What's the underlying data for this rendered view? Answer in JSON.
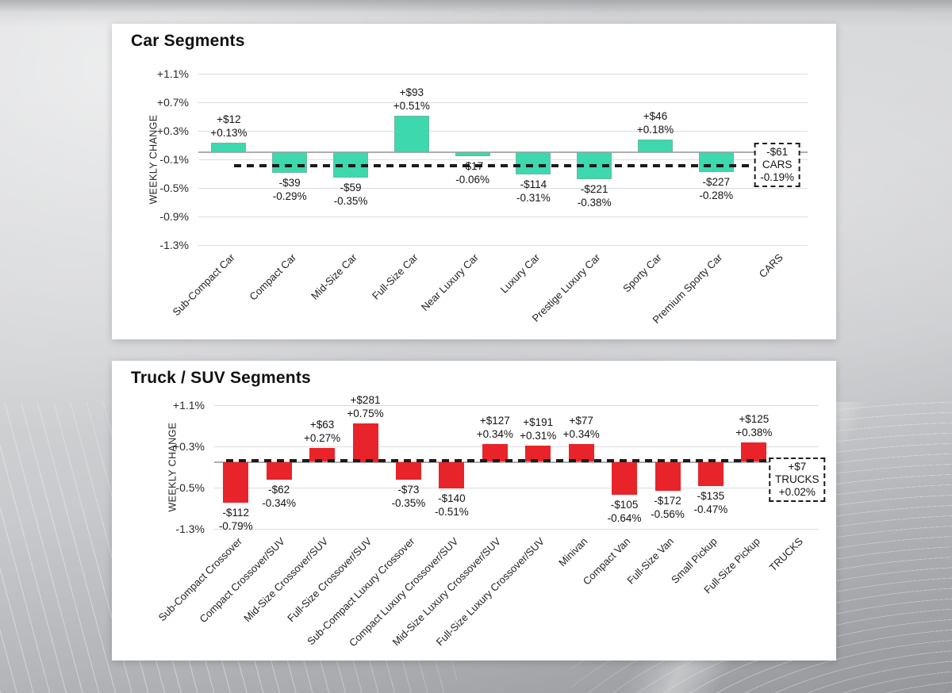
{
  "chart_data": [
    {
      "type": "bar",
      "title": "Car Segments",
      "ylabel": "WEEKLY CHANGE",
      "ylim": [
        -1.3,
        1.1
      ],
      "grid": true,
      "bar_color": "#3dd8ae",
      "bar_border": "#6fb7a2",
      "yticks": [
        {
          "value": 1.1,
          "label": "+1.1%"
        },
        {
          "value": 0.7,
          "label": "+0.7%"
        },
        {
          "value": 0.3,
          "label": "+0.3%"
        },
        {
          "value": -0.1,
          "label": "-0.1%"
        },
        {
          "value": -0.5,
          "label": "-0.5%"
        },
        {
          "value": -0.9,
          "label": "-0.9%"
        },
        {
          "value": -1.3,
          "label": "-1.3%"
        }
      ],
      "bars": [
        {
          "category": "Sub-Compact Car",
          "dollar": "+$12",
          "percent": "+0.13%",
          "percent_value": 0.13
        },
        {
          "category": "Compact Car",
          "dollar": "-$39",
          "percent": "-0.29%",
          "percent_value": -0.29
        },
        {
          "category": "Mid-Size Car",
          "dollar": "-$59",
          "percent": "-0.35%",
          "percent_value": -0.35
        },
        {
          "category": "Full-Size Car",
          "dollar": "+$93",
          "percent": "+0.51%",
          "percent_value": 0.51
        },
        {
          "category": "Near Luxury Car",
          "dollar": "-$17",
          "percent": "-0.06%",
          "percent_value": -0.06
        },
        {
          "category": "Luxury Car",
          "dollar": "-$114",
          "percent": "-0.31%",
          "percent_value": -0.31
        },
        {
          "category": "Prestige Luxury Car",
          "dollar": "-$221",
          "percent": "-0.38%",
          "percent_value": -0.38
        },
        {
          "category": "Sporty Car",
          "dollar": "+$46",
          "percent": "+0.18%",
          "percent_value": 0.18
        },
        {
          "category": "Premium Sporty Car",
          "dollar": "-$227",
          "percent": "-0.28%",
          "percent_value": -0.28
        }
      ],
      "summary": {
        "category": "CARS",
        "dollar": "-$61",
        "percent": "-0.19%",
        "percent_value": -0.19
      },
      "average_line": {
        "value": -0.19,
        "style": "dashed"
      },
      "summary_box_position": "center"
    },
    {
      "type": "bar",
      "title": "Truck / SUV Segments",
      "ylabel": "WEEKLY CHANGE",
      "ylim": [
        -1.3,
        1.1
      ],
      "grid": true,
      "bar_color": "#e8242a",
      "yticks": [
        {
          "value": 1.1,
          "label": "+1.1%"
        },
        {
          "value": 0.3,
          "label": "+0.3%"
        },
        {
          "value": -0.5,
          "label": "-0.5%"
        },
        {
          "value": -1.3,
          "label": "-1.3%"
        }
      ],
      "bars": [
        {
          "category": "Sub-Compact Crossover",
          "dollar": "-$112",
          "percent": "-0.79%",
          "percent_value": -0.79
        },
        {
          "category": "Compact Crossover/SUV",
          "dollar": "-$62",
          "percent": "-0.34%",
          "percent_value": -0.34
        },
        {
          "category": "Mid-Size Crossover/SUV",
          "dollar": "+$63",
          "percent": "+0.27%",
          "percent_value": 0.27
        },
        {
          "category": "Full-Size Crossover/SUV",
          "dollar": "+$281",
          "percent": "+0.75%",
          "percent_value": 0.75
        },
        {
          "category": "Sub-Compact Luxury Crossover",
          "dollar": "-$73",
          "percent": "-0.35%",
          "percent_value": -0.35
        },
        {
          "category": "Compact Luxury Crossover/SUV",
          "dollar": "-$140",
          "percent": "-0.51%",
          "percent_value": -0.51
        },
        {
          "category": "Mid-Size Luxury Crossover/SUV",
          "dollar": "+$127",
          "percent": "+0.34%",
          "percent_value": 0.34
        },
        {
          "category": "Full-Size Luxury Crossover/SUV",
          "dollar": "+$191",
          "percent": "+0.31%",
          "percent_value": 0.31
        },
        {
          "category": "Minivan",
          "dollar": "+$77",
          "percent": "+0.34%",
          "percent_value": 0.34
        },
        {
          "category": "Compact Van",
          "dollar": "-$105",
          "percent": "-0.64%",
          "percent_value": -0.64
        },
        {
          "category": "Full-Size Van",
          "dollar": "-$172",
          "percent": "-0.56%",
          "percent_value": -0.56
        },
        {
          "category": "Small Pickup",
          "dollar": "-$135",
          "percent": "-0.47%",
          "percent_value": -0.47
        },
        {
          "category": "Full-Size Pickup",
          "dollar": "+$125",
          "percent": "+0.38%",
          "percent_value": 0.38
        }
      ],
      "summary": {
        "category": "TRUCKS",
        "dollar": "+$7",
        "percent": "+0.02%",
        "percent_value": 0.02
      },
      "average_line": {
        "value": 0.02,
        "style": "dashed"
      },
      "summary_box_position": "below"
    }
  ]
}
